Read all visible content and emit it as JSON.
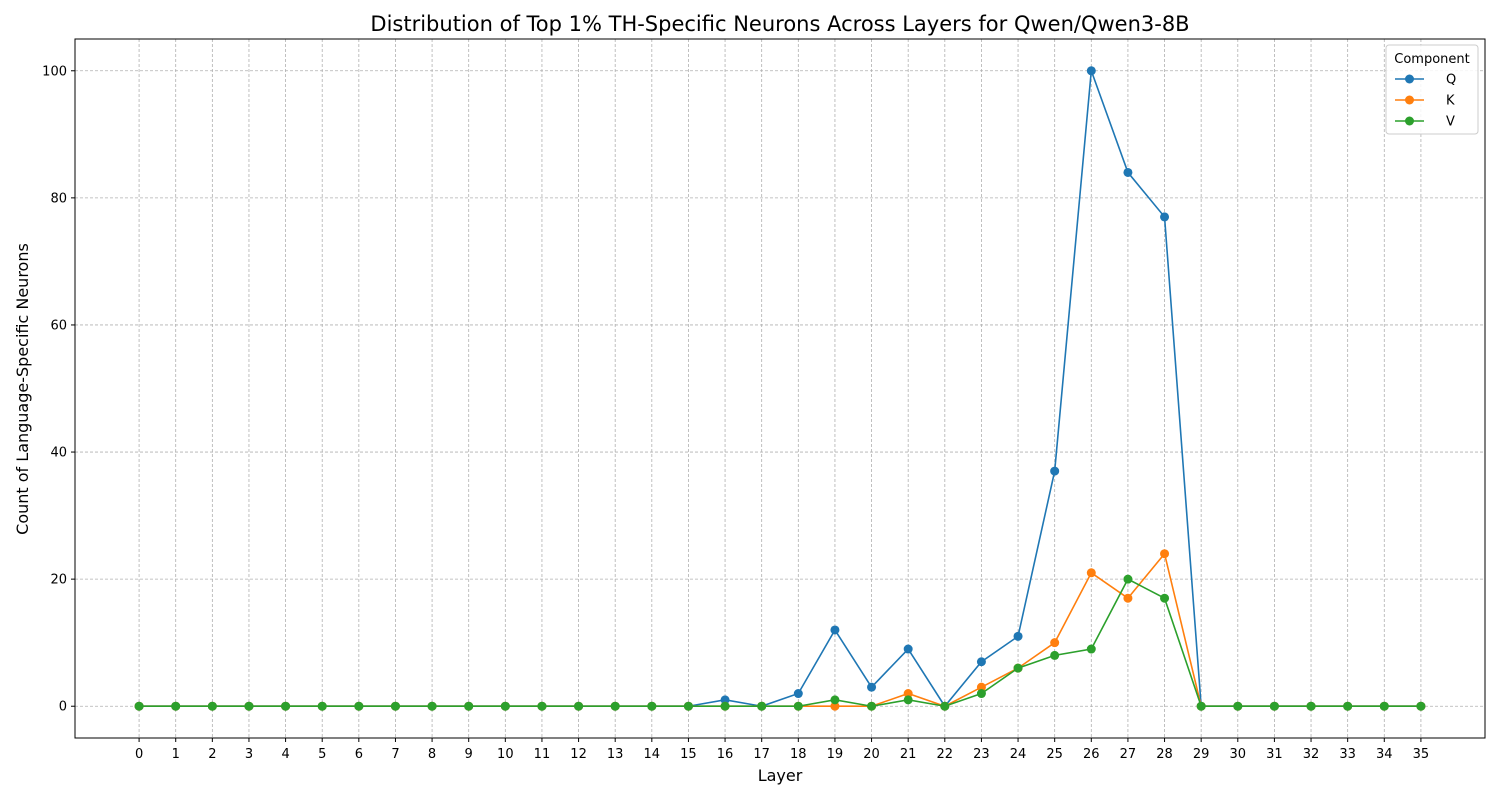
{
  "chart_data": {
    "type": "line",
    "title": "Distribution of Top 1% TH-Specific Neurons Across Layers for Qwen/Qwen3-8B",
    "xlabel": "Layer",
    "ylabel": "Count of Language-Specific Neurons",
    "x": [
      0,
      1,
      2,
      3,
      4,
      5,
      6,
      7,
      8,
      9,
      10,
      11,
      12,
      13,
      14,
      15,
      16,
      17,
      18,
      19,
      20,
      21,
      22,
      23,
      24,
      25,
      26,
      27,
      28,
      29,
      30,
      31,
      32,
      33,
      34,
      35
    ],
    "xlim": [
      -1.75,
      36.75
    ],
    "ylim": [
      -5,
      105
    ],
    "yticks": [
      0,
      20,
      40,
      60,
      80,
      100
    ],
    "grid": true,
    "legend": {
      "title": "Component",
      "position": "top-right"
    },
    "series": [
      {
        "name": "Q",
        "color": "#1f77b4",
        "values": [
          0,
          0,
          0,
          0,
          0,
          0,
          0,
          0,
          0,
          0,
          0,
          0,
          0,
          0,
          0,
          0,
          1,
          0,
          2,
          12,
          3,
          9,
          0,
          7,
          11,
          37,
          100,
          84,
          77,
          0,
          0,
          0,
          0,
          0,
          0,
          0
        ]
      },
      {
        "name": "K",
        "color": "#ff7f0e",
        "values": [
          0,
          0,
          0,
          0,
          0,
          0,
          0,
          0,
          0,
          0,
          0,
          0,
          0,
          0,
          0,
          0,
          0,
          0,
          0,
          0,
          0,
          2,
          0,
          3,
          6,
          10,
          21,
          17,
          24,
          0,
          0,
          0,
          0,
          0,
          0,
          0
        ]
      },
      {
        "name": "V",
        "color": "#2ca02c",
        "values": [
          0,
          0,
          0,
          0,
          0,
          0,
          0,
          0,
          0,
          0,
          0,
          0,
          0,
          0,
          0,
          0,
          0,
          0,
          0,
          1,
          0,
          1,
          0,
          2,
          6,
          8,
          9,
          20,
          17,
          0,
          0,
          0,
          0,
          0,
          0,
          0
        ]
      }
    ]
  }
}
